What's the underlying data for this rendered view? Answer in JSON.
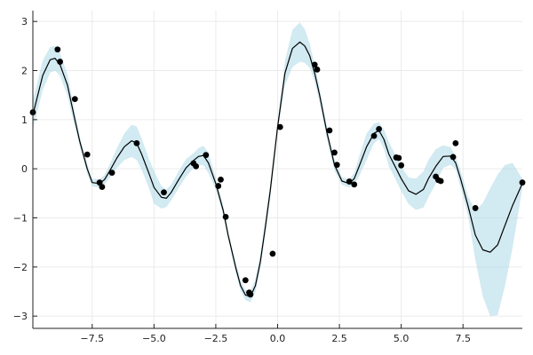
{
  "chart_data": {
    "type": "line",
    "title": "",
    "xlabel": "",
    "ylabel": "",
    "xlim": [
      -9.9,
      9.9
    ],
    "ylim": [
      -3.25,
      3.22
    ],
    "grid": true,
    "legend": "none",
    "x_ticks": [
      {
        "value": -7.5,
        "label": "−7.5"
      },
      {
        "value": -5.0,
        "label": "−5.0"
      },
      {
        "value": -2.5,
        "label": "−2.5"
      },
      {
        "value": 0.0,
        "label": "0.0"
      },
      {
        "value": 2.5,
        "label": "2.5"
      },
      {
        "value": 5.0,
        "label": "5.0"
      },
      {
        "value": 7.5,
        "label": "7.5"
      }
    ],
    "y_ticks": [
      {
        "value": 3,
        "label": "3"
      },
      {
        "value": 2,
        "label": "2"
      },
      {
        "value": 1,
        "label": "1"
      },
      {
        "value": 0,
        "label": "0"
      },
      {
        "value": -1,
        "label": "−1"
      },
      {
        "value": -2,
        "label": "−2"
      },
      {
        "value": -3,
        "label": "−3"
      }
    ],
    "colors": {
      "band": "#add8e6",
      "line": "#000000",
      "points": "#000000",
      "grid": "#ebebeb",
      "axis": "#222222"
    },
    "mean": {
      "x": [
        -9.9,
        -9.5,
        -9.2,
        -9.0,
        -8.8,
        -8.5,
        -8.2,
        -8.0,
        -7.7,
        -7.5,
        -7.2,
        -7.0,
        -6.8,
        -6.5,
        -6.2,
        -5.9,
        -5.7,
        -5.5,
        -5.2,
        -5.0,
        -4.7,
        -4.5,
        -4.3,
        -4.0,
        -3.7,
        -3.4,
        -3.2,
        -3.0,
        -2.8,
        -2.5,
        -2.2,
        -2.0,
        -1.7,
        -1.5,
        -1.3,
        -1.1,
        -0.9,
        -0.7,
        -0.5,
        -0.3,
        0.0,
        0.3,
        0.6,
        0.9,
        1.1,
        1.3,
        1.5,
        1.7,
        2.0,
        2.3,
        2.6,
        2.9,
        3.1,
        3.3,
        3.6,
        3.9,
        4.1,
        4.3,
        4.5,
        4.8,
        5.0,
        5.3,
        5.6,
        5.9,
        6.1,
        6.4,
        6.7,
        7.0,
        7.2,
        7.4,
        7.7,
        8.0,
        8.3,
        8.6,
        8.9,
        9.2,
        9.5,
        9.9
      ],
      "y": [
        1.1,
        1.9,
        2.22,
        2.25,
        2.12,
        1.7,
        1.0,
        0.55,
        0.0,
        -0.28,
        -0.3,
        -0.22,
        -0.05,
        0.22,
        0.45,
        0.57,
        0.52,
        0.3,
        -0.1,
        -0.38,
        -0.58,
        -0.6,
        -0.48,
        -0.22,
        0.02,
        0.17,
        0.25,
        0.27,
        0.12,
        -0.3,
        -0.85,
        -1.35,
        -2.0,
        -2.38,
        -2.57,
        -2.6,
        -2.38,
        -1.9,
        -1.2,
        -0.45,
        0.85,
        1.95,
        2.45,
        2.58,
        2.5,
        2.3,
        1.95,
        1.5,
        0.72,
        0.08,
        -0.25,
        -0.3,
        -0.2,
        0.05,
        0.45,
        0.72,
        0.78,
        0.6,
        0.3,
        0.0,
        -0.2,
        -0.45,
        -0.52,
        -0.42,
        -0.2,
        0.05,
        0.25,
        0.26,
        0.12,
        -0.2,
        -0.75,
        -1.35,
        -1.65,
        -1.7,
        -1.55,
        -1.15,
        -0.75,
        -0.3
      ]
    },
    "band_upper": [
      1.4,
      2.2,
      2.48,
      2.5,
      2.35,
      1.92,
      1.15,
      0.65,
      0.1,
      -0.2,
      -0.22,
      -0.12,
      0.08,
      0.42,
      0.72,
      0.9,
      0.86,
      0.62,
      0.2,
      -0.05,
      -0.35,
      -0.42,
      -0.32,
      -0.05,
      0.2,
      0.32,
      0.42,
      0.47,
      0.33,
      -0.18,
      -0.75,
      -1.27,
      -1.9,
      -2.27,
      -2.47,
      -2.48,
      -2.25,
      -1.75,
      -1.05,
      -0.3,
      0.95,
      2.2,
      2.83,
      2.98,
      2.84,
      2.55,
      2.12,
      1.65,
      0.84,
      0.2,
      -0.17,
      -0.22,
      -0.08,
      0.25,
      0.72,
      0.92,
      0.95,
      0.8,
      0.55,
      0.25,
      0.05,
      -0.18,
      -0.2,
      -0.05,
      0.18,
      0.4,
      0.48,
      0.44,
      0.25,
      -0.03,
      -0.55,
      -0.85,
      -0.7,
      -0.4,
      -0.12,
      0.08,
      0.12,
      -0.2
    ],
    "band_lower": [
      0.8,
      1.6,
      1.96,
      2.0,
      1.89,
      1.48,
      0.85,
      0.45,
      -0.1,
      -0.36,
      -0.38,
      -0.32,
      -0.18,
      0.02,
      0.18,
      0.24,
      0.18,
      -0.02,
      -0.4,
      -0.71,
      -0.81,
      -0.78,
      -0.64,
      -0.39,
      -0.16,
      0.02,
      0.08,
      0.07,
      -0.09,
      -0.42,
      -0.95,
      -1.43,
      -2.1,
      -2.49,
      -2.67,
      -2.72,
      -2.51,
      -2.05,
      -1.35,
      -0.6,
      0.75,
      1.7,
      2.07,
      2.18,
      2.16,
      2.05,
      1.78,
      1.35,
      0.6,
      -0.04,
      -0.33,
      -0.38,
      -0.32,
      -0.15,
      0.18,
      0.52,
      0.61,
      0.4,
      0.05,
      -0.25,
      -0.45,
      -0.72,
      -0.84,
      -0.79,
      -0.58,
      -0.3,
      0.02,
      0.08,
      -0.01,
      -0.37,
      -0.95,
      -1.85,
      -2.6,
      -3.0,
      -2.98,
      -2.38,
      -1.62,
      -0.4
    ],
    "observations": {
      "x": [
        -9.9,
        -8.9,
        -8.8,
        -8.2,
        -7.7,
        -7.2,
        -7.1,
        -6.7,
        -5.7,
        -4.6,
        -3.4,
        -3.3,
        -2.9,
        -2.4,
        -2.3,
        -2.1,
        -1.3,
        -1.15,
        -1.1,
        -0.2,
        0.1,
        1.5,
        1.6,
        2.1,
        2.3,
        2.4,
        2.9,
        3.1,
        3.9,
        4.1,
        4.8,
        4.9,
        5.0,
        6.4,
        6.5,
        6.6,
        7.1,
        7.2,
        8.0,
        9.9
      ],
      "y": [
        1.15,
        2.43,
        2.18,
        1.42,
        0.29,
        -0.28,
        -0.37,
        -0.08,
        0.52,
        -0.48,
        0.11,
        0.05,
        0.28,
        -0.35,
        -0.22,
        -0.98,
        -2.27,
        -2.52,
        -2.56,
        -1.73,
        0.85,
        2.12,
        2.02,
        0.78,
        0.33,
        0.08,
        -0.26,
        -0.32,
        0.67,
        0.81,
        0.23,
        0.22,
        0.07,
        -0.16,
        -0.23,
        -0.25,
        0.24,
        0.52,
        -0.8,
        -0.28
      ]
    }
  }
}
